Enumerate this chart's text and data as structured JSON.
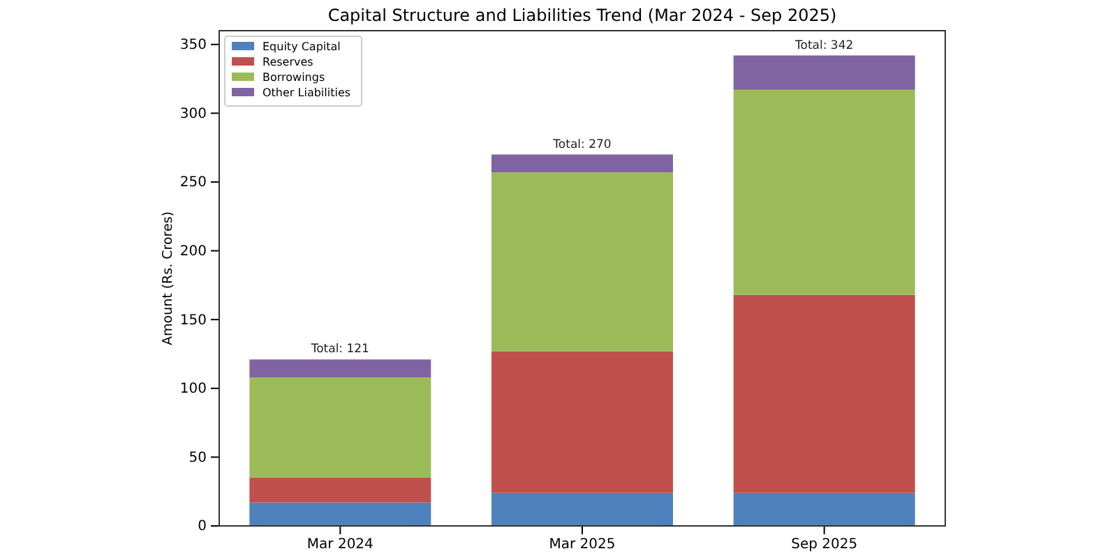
{
  "chart_data": {
    "type": "bar",
    "title": "Capital Structure and Liabilities Trend (Mar 2024 - Sep 2025)",
    "ylabel": "Amount (Rs. Crores)",
    "categories": [
      "Mar 2024",
      "Mar 2025",
      "Sep 2025"
    ],
    "stacked": true,
    "series": [
      {
        "name": "Equity Capital",
        "color": "#4f81bd",
        "values": [
          17,
          24,
          24
        ]
      },
      {
        "name": "Reserves",
        "color": "#c0504d",
        "values": [
          18,
          103,
          144
        ]
      },
      {
        "name": "Borrowings",
        "color": "#9bbb59",
        "values": [
          73,
          130,
          149
        ]
      },
      {
        "name": "Other Liabilities",
        "color": "#8064a2",
        "values": [
          13,
          13,
          25
        ]
      }
    ],
    "totals": [
      "Total: 121",
      "Total: 270",
      "Total: 342"
    ],
    "ylim": [
      0,
      360
    ],
    "yticks": [
      0,
      50,
      100,
      150,
      200,
      250,
      300,
      350
    ],
    "grid": false,
    "legend": "top left"
  }
}
